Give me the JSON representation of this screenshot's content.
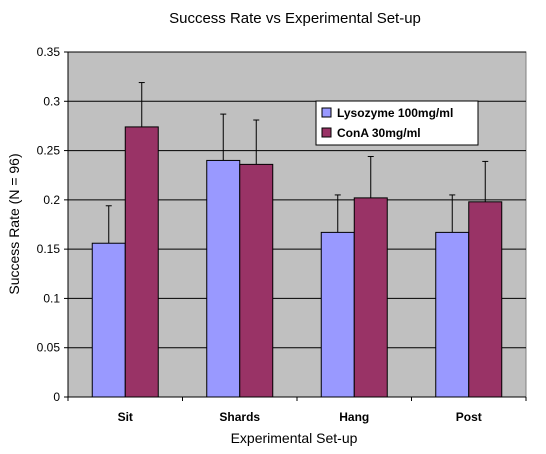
{
  "chart_data": {
    "type": "bar",
    "title": "Success Rate vs Experimental Set-up",
    "xlabel": "Experimental Set-up",
    "ylabel": "Success Rate (N = 96)",
    "ylim": [
      0,
      0.35
    ],
    "yticks": [
      "0",
      "0.05",
      "0.1",
      "0.15",
      "0.2",
      "0.25",
      "0.3",
      "0.35"
    ],
    "categories": [
      "Sit",
      "Shards",
      "Hang",
      "Post"
    ],
    "series": [
      {
        "name": "Lysozyme 100mg/ml",
        "color": "#9999ff",
        "values": [
          0.156,
          0.24,
          0.167,
          0.167
        ],
        "error_upper": [
          0.194,
          0.287,
          0.205,
          0.205
        ]
      },
      {
        "name": "ConA 30mg/ml",
        "color": "#993366",
        "values": [
          0.274,
          0.236,
          0.202,
          0.198
        ],
        "error_upper": [
          0.319,
          0.281,
          0.244,
          0.239
        ]
      }
    ],
    "plot_background": "#c0c0c0",
    "grid": true,
    "legend_position": "top-right"
  }
}
